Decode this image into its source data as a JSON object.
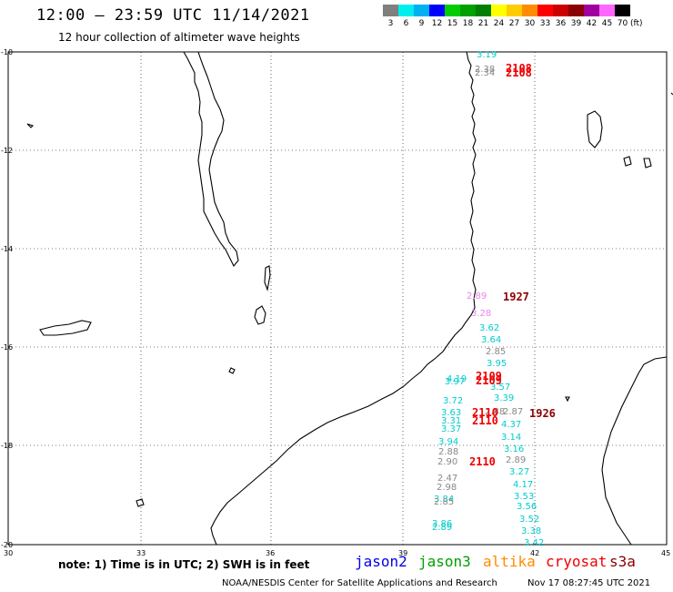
{
  "header": {
    "title": "12:00 — 23:59 UTC 11/14/2021",
    "subtitle": "12 hour collection of altimeter wave heights"
  },
  "scale": {
    "unit": "(ft)",
    "levels": [
      {
        "label": "3",
        "color": "#7f7f7f"
      },
      {
        "label": "6",
        "color": "#00eeee"
      },
      {
        "label": "9",
        "color": "#00b0f0"
      },
      {
        "label": "12",
        "color": "#0000ff"
      },
      {
        "label": "15",
        "color": "#00cc00"
      },
      {
        "label": "18",
        "color": "#00a000"
      },
      {
        "label": "21",
        "color": "#007f00"
      },
      {
        "label": "24",
        "color": "#ffff00"
      },
      {
        "label": "27",
        "color": "#ffcc00"
      },
      {
        "label": "30",
        "color": "#ff8c00"
      },
      {
        "label": "33",
        "color": "#ff0000"
      },
      {
        "label": "36",
        "color": "#cc0000"
      },
      {
        "label": "39",
        "color": "#8b0000"
      },
      {
        "label": "42",
        "color": "#a000a0"
      },
      {
        "label": "45",
        "color": "#ff66ff"
      },
      {
        "label": "70",
        "color": "#000000"
      }
    ]
  },
  "axes": {
    "lat_labels": [
      "-10",
      "-12",
      "-14",
      "-16",
      "-18",
      "-20"
    ],
    "lon_labels": [
      "30",
      "33",
      "36",
      "39",
      "42",
      "45"
    ]
  },
  "observations": [
    {
      "text": "3.19",
      "color": "#00cccc"
    },
    {
      "text": "2.38",
      "color": "#888888"
    },
    {
      "text": "2.34",
      "color": "#888888"
    },
    {
      "text": "2.89",
      "color": "#ee82ee"
    },
    {
      "text": "3.28",
      "color": "#ee82ee"
    },
    {
      "text": "3.62",
      "color": "#00cccc"
    },
    {
      "text": "3.64",
      "color": "#00cccc"
    },
    {
      "text": "2.85",
      "color": "#888888"
    },
    {
      "text": "3.95",
      "color": "#00cccc"
    },
    {
      "text": "4.19",
      "color": "#00cccc"
    },
    {
      "text": "3.97",
      "color": "#00cccc"
    },
    {
      "text": "3.57",
      "color": "#00cccc"
    },
    {
      "text": "3.39",
      "color": "#00cccc"
    },
    {
      "text": "3.72",
      "color": "#00cccc"
    },
    {
      "text": "3.63",
      "color": "#00cccc"
    },
    {
      "text": "3.31",
      "color": "#00cccc"
    },
    {
      "text": "3.37",
      "color": "#00cccc"
    },
    {
      "text": "2.88",
      "color": "#888888"
    },
    {
      "text": "2.87",
      "color": "#888888"
    },
    {
      "text": "4.37",
      "color": "#00cccc"
    },
    {
      "text": "3.14",
      "color": "#00cccc"
    },
    {
      "text": "3.94",
      "color": "#00cccc"
    },
    {
      "text": "3.16",
      "color": "#00cccc"
    },
    {
      "text": "2.88",
      "color": "#888888"
    },
    {
      "text": "2.90",
      "color": "#888888"
    },
    {
      "text": "2.89",
      "color": "#888888"
    },
    {
      "text": "3.27",
      "color": "#00cccc"
    },
    {
      "text": "2.47",
      "color": "#888888"
    },
    {
      "text": "4.17",
      "color": "#00cccc"
    },
    {
      "text": "2.98",
      "color": "#888888"
    },
    {
      "text": "3.53",
      "color": "#00cccc"
    },
    {
      "text": "3.84",
      "color": "#00cccc"
    },
    {
      "text": "2.85",
      "color": "#888888"
    },
    {
      "text": "3.56",
      "color": "#00cccc"
    },
    {
      "text": "3.52",
      "color": "#00cccc"
    },
    {
      "text": "3.86",
      "color": "#00cccc"
    },
    {
      "text": "2.89",
      "color": "#00cccc"
    },
    {
      "text": "3.38",
      "color": "#00cccc"
    },
    {
      "text": "3.42",
      "color": "#00cccc"
    }
  ],
  "pass_times": [
    {
      "text": "2108",
      "color": "#ee0000"
    },
    {
      "text": "2108",
      "color": "#ee0000"
    },
    {
      "text": "1927",
      "color": "#8b0000"
    },
    {
      "text": "2109",
      "color": "#ee0000"
    },
    {
      "text": "2109",
      "color": "#ee0000"
    },
    {
      "text": "2110",
      "color": "#ee0000"
    },
    {
      "text": "2110",
      "color": "#ee0000"
    },
    {
      "text": "1926",
      "color": "#8b0000"
    },
    {
      "text": "2110",
      "color": "#ee0000"
    }
  ],
  "note": "note: 1) Time is in UTC; 2) SWH is in feet",
  "legend": [
    {
      "name": "jason2",
      "color": "#0000ee"
    },
    {
      "name": "jason3",
      "color": "#00a000"
    },
    {
      "name": "altika",
      "color": "#ff8c00"
    },
    {
      "name": "cryosat",
      "color": "#ee0000"
    },
    {
      "name": "s3a",
      "color": "#8b0000"
    }
  ],
  "footer": {
    "credit": "NOAA/NESDIS Center for Satellite Applications and Research",
    "timestamp": "Nov 17 08:27:45 UTC 2021"
  }
}
